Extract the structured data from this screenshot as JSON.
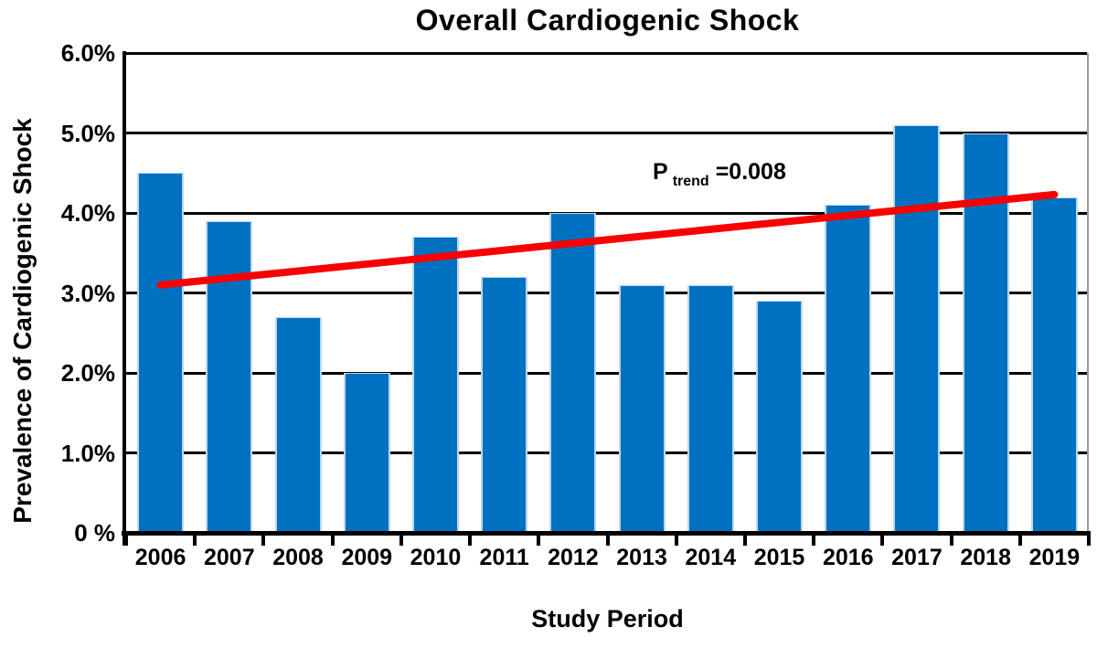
{
  "chart_data": {
    "type": "bar",
    "title": "Overall Cardiogenic Shock",
    "xlabel": "Study Period",
    "ylabel": "Prevalence of Cardiogenic Shock",
    "categories": [
      "2006",
      "2007",
      "2008",
      "2009",
      "2010",
      "2011",
      "2012",
      "2013",
      "2014",
      "2015",
      "2016",
      "2017",
      "2018",
      "2019"
    ],
    "values": [
      4.5,
      3.9,
      2.7,
      2.0,
      3.7,
      3.2,
      4.0,
      3.1,
      3.1,
      2.9,
      4.1,
      5.1,
      5.0,
      4.2
    ],
    "values_unit": "%",
    "ylim": [
      0,
      6
    ],
    "y_ticks": [
      {
        "value": 6,
        "label": "6.0%"
      },
      {
        "value": 5,
        "label": "5.0%"
      },
      {
        "value": 4,
        "label": "4.0%"
      },
      {
        "value": 3,
        "label": "3.0%"
      },
      {
        "value": 2,
        "label": "2.0%"
      },
      {
        "value": 1,
        "label": "1.0%"
      },
      {
        "value": 0,
        "label": "0 %"
      }
    ],
    "grid": "horizontal",
    "legend": "none",
    "bar_color": "#0071C1",
    "bar_edge_color": "#BDD7EE",
    "gridline_color": "#000000",
    "trend_line": {
      "color": "#FA0000",
      "start_category": "2006",
      "start_value": 3.1,
      "end_category": "2019",
      "end_value": 4.23
    },
    "annotation": {
      "p": "P",
      "sub": "trend",
      "eq": "=0.008"
    }
  }
}
